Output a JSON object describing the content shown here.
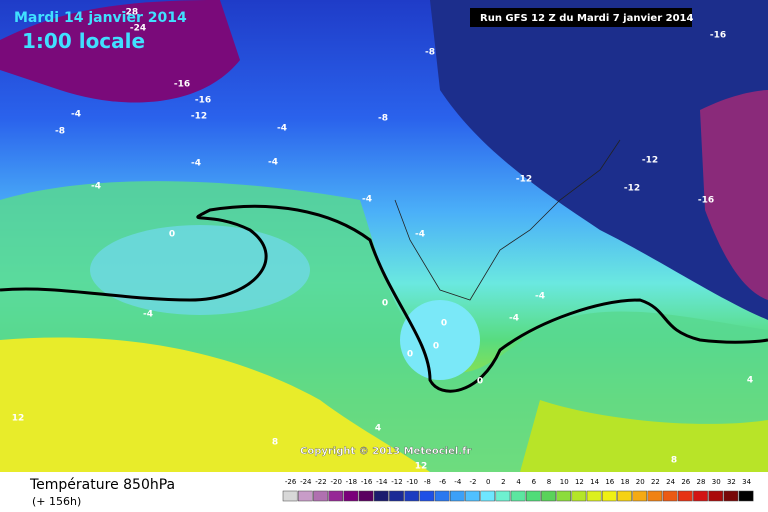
{
  "header": {
    "date": "Mardi 14 janvier 2014",
    "time": "1:00 locale",
    "run": "Run GFS 12 Z du Mardi 7 janvier 2014"
  },
  "copyright": "Copyright © 2013 Meteociel.fr",
  "contour_labels": [
    "-28",
    "-24",
    "-16",
    "-8",
    "-16",
    "-16",
    "-12",
    "-8",
    "-4",
    "-8",
    "-4",
    "-4",
    "-4",
    "-12",
    "-12",
    "-12",
    "-4",
    "-4",
    "-16",
    "0",
    "-4",
    "-4",
    "0",
    "-4",
    "-4",
    "0",
    "0",
    "0",
    "0",
    "4",
    "12",
    "4",
    "8",
    "8",
    "12"
  ],
  "legend": {
    "title": "Température 850hPa",
    "lead": "(+ 156h)",
    "ticks": [
      -26,
      -24,
      -22,
      -20,
      -18,
      -16,
      -14,
      -12,
      -10,
      -8,
      -6,
      -4,
      -2,
      0,
      2,
      4,
      6,
      8,
      10,
      12,
      14,
      16,
      18,
      20,
      22,
      24,
      26,
      28,
      30,
      32,
      34
    ],
    "colors": [
      "#d8d8d8",
      "#c89cc8",
      "#b070b0",
      "#962896",
      "#7a007a",
      "#5a0060",
      "#1c1c6e",
      "#1a2a96",
      "#1c3cc0",
      "#1e50e6",
      "#2a78f0",
      "#3ca0f8",
      "#50c0ff",
      "#6ee6ff",
      "#6ef0d0",
      "#5ce6a0",
      "#50dc78",
      "#5ad25a",
      "#8cdc3c",
      "#b4e628",
      "#dcf01e",
      "#f0f014",
      "#f5d214",
      "#f5aa14",
      "#f08214",
      "#eb5a14",
      "#e63214",
      "#d21414",
      "#aa0a0a",
      "#780808",
      "#000000"
    ]
  }
}
